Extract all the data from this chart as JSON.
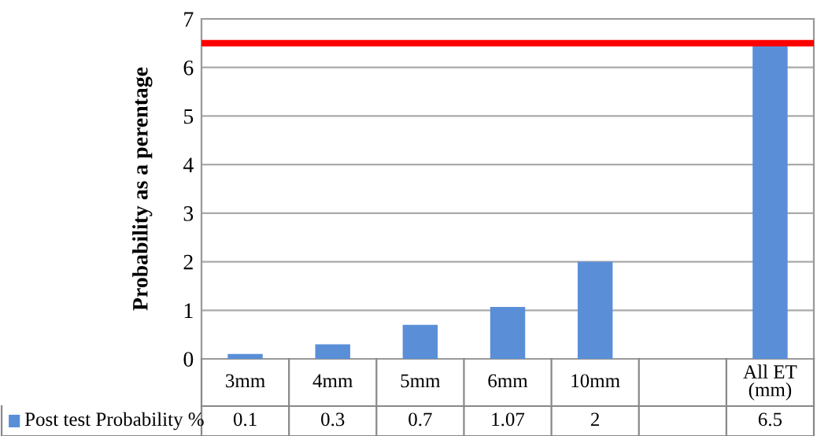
{
  "chart_data": {
    "type": "bar",
    "ylabel": "Probability as a perentage",
    "categories": [
      "3mm",
      "4mm",
      "5mm",
      "6mm",
      "10mm",
      null,
      "All ET (mm)"
    ],
    "series": [
      {
        "name": "Post test Probability %",
        "color": "#5a8fd8",
        "values": [
          0.1,
          0.3,
          0.7,
          1.07,
          2,
          null,
          6.5
        ]
      }
    ],
    "ylim": [
      0,
      7
    ],
    "yticks": [
      0,
      1,
      2,
      3,
      4,
      5,
      6,
      7
    ],
    "grid": "y",
    "legend": "bottom",
    "data_labels": true,
    "ref_lines": [
      {
        "axis": "y",
        "value": 6.5,
        "color": "#ff0000"
      }
    ]
  }
}
